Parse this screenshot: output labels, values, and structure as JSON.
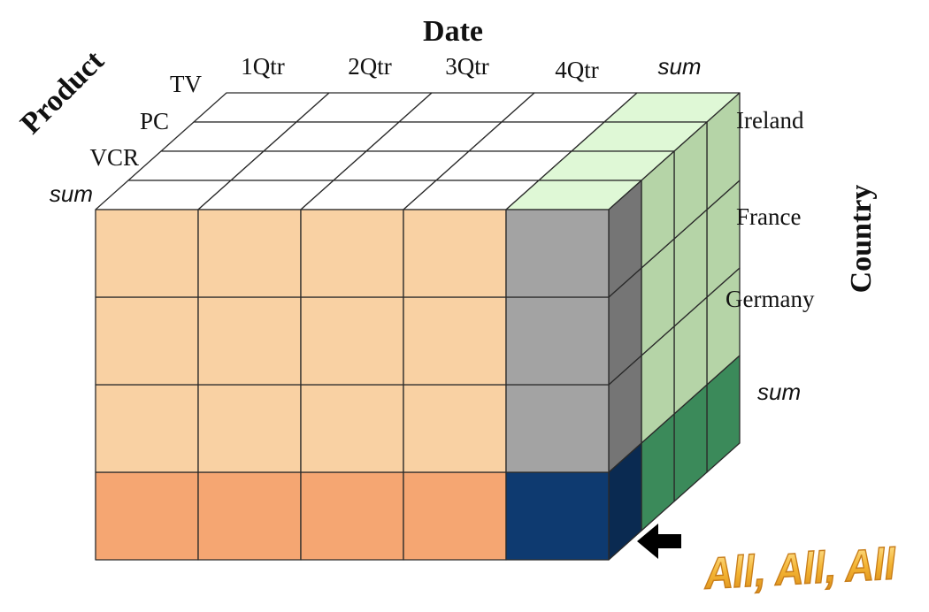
{
  "axes": {
    "date": "Date",
    "product": "Product",
    "country": "Country"
  },
  "date_labels": [
    "1Qtr",
    "2Qtr",
    "3Qtr",
    "4Qtr",
    "sum"
  ],
  "product_labels": [
    "TV",
    "PC",
    "VCR",
    "sum"
  ],
  "country_labels": [
    "Ireland",
    "France",
    "Germany",
    "sum"
  ],
  "callout": "All, All, All",
  "colors": {
    "body": "#f9d1a3",
    "product_sum_row": "#f5a672",
    "date_sum_column": "#a3a3a3",
    "grand_total": "#0e3a70",
    "country_side": "#b5d4a7",
    "country_top": "#dff8d6",
    "country_sum": "#3b8a5a",
    "top_face": "#ffffff",
    "callout_fill": "#f2b133"
  }
}
